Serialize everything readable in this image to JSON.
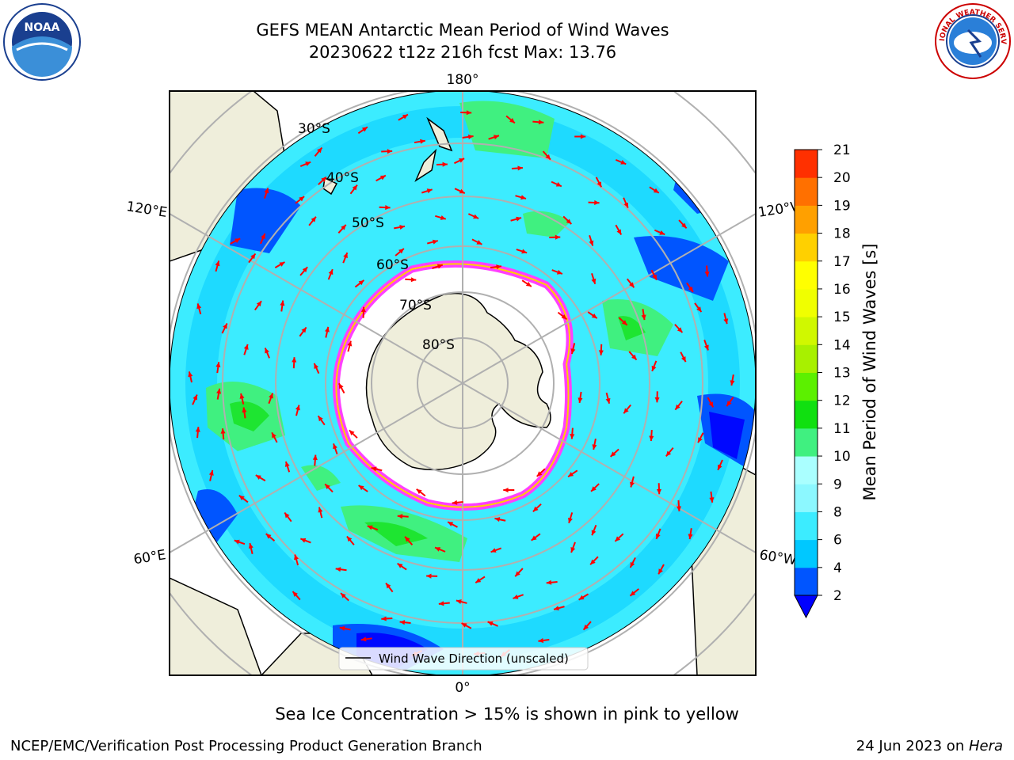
{
  "title_line1": "GEFS MEAN Antarctic Mean Period of Wind Waves",
  "title_line2": "20230622 t12z 216h fcst   Max: 13.76",
  "logos": {
    "left": "NOAA",
    "right": "NATIONAL WEATHER SERVICE"
  },
  "map": {
    "projection": "south-polar-stereographic",
    "lon_labels": [
      "180°",
      "120°E",
      "120°W",
      "60°E",
      "60°W",
      "0°"
    ],
    "lat_labels": [
      "30°S",
      "40°S",
      "50°S",
      "60°S",
      "70°S",
      "80°S"
    ],
    "legend_entry": "Wind Wave Direction (unscaled)",
    "arrow_color": "#ff0000"
  },
  "colorbar": {
    "label": "Mean Period of Wind Waves [s]",
    "ticks": [
      2,
      4,
      6,
      8,
      9,
      10,
      11,
      12,
      13,
      14,
      15,
      16,
      17,
      18,
      19,
      20,
      21
    ],
    "colors": [
      "#0055ff",
      "#00c8ff",
      "#3cecff",
      "#8cf8ff",
      "#aaffff",
      "#40f080",
      "#10e010",
      "#5cf000",
      "#a8f000",
      "#d0f800",
      "#f0ff00",
      "#ffff00",
      "#ffd000",
      "#ffa000",
      "#ff7000",
      "#ff3000",
      "#ff0000"
    ],
    "under_color": "#0000ff"
  },
  "ice_note": "Sea Ice Concentration > 15% is shown in pink to yellow",
  "footer": {
    "left": "NCEP/EMC/Verification Post Processing Product Generation Branch",
    "date": "24 Jun 2023 on ",
    "system": "Hera"
  }
}
